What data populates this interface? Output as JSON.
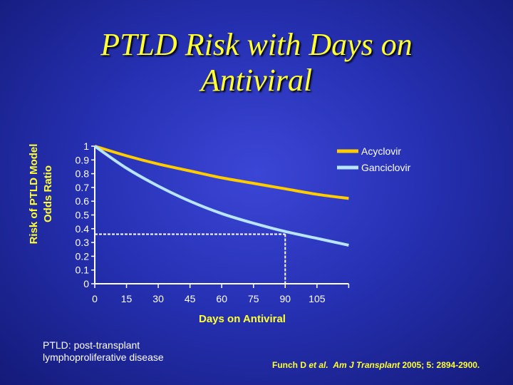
{
  "slide": {
    "title_line1": "PTLD Risk with Days on",
    "title_line2": "Antiviral",
    "footnote_line1": "PTLD: post-transplant",
    "footnote_line2": "lymphoproliferative disease",
    "citation_author": "Funch D ",
    "citation_etal": "et al.",
    "citation_journal": "Am J Transplant",
    "citation_rest": " 2005; 5: 2894-2900."
  },
  "colors": {
    "background": "#2631b4",
    "title": "#ffff33",
    "acyclovir": "#ffcc00",
    "ganciclovir": "#b8e4ff",
    "axis": "#ffffff"
  },
  "chart_data": {
    "type": "line",
    "xlabel": "Days on Antiviral",
    "ylabel_line1": "Risk of PTLD Model",
    "ylabel_line2": "Odds Ratio",
    "xlim": [
      0,
      120
    ],
    "ylim": [
      0,
      1
    ],
    "xticks": [
      0,
      15,
      30,
      45,
      60,
      75,
      90,
      105
    ],
    "yticks": [
      0,
      0.1,
      0.2,
      0.3,
      0.4,
      0.5,
      0.6,
      0.7,
      0.8,
      0.9,
      1
    ],
    "ytick_labels": [
      "0",
      "0.1",
      "0.2",
      "0.3",
      "0.4",
      "0.5",
      "0.6",
      "0.7",
      "0.8",
      "0.9",
      "1"
    ],
    "legend_position": "top-right",
    "series": [
      {
        "name": "Acyclovir",
        "color": "#ffcc00",
        "x": [
          0,
          15,
          30,
          45,
          60,
          75,
          90,
          105,
          120
        ],
        "y": [
          1.0,
          0.93,
          0.87,
          0.82,
          0.77,
          0.73,
          0.69,
          0.65,
          0.62
        ]
      },
      {
        "name": "Ganciclovir",
        "color": "#b8e4ff",
        "x": [
          0,
          15,
          30,
          45,
          60,
          75,
          90,
          105,
          120
        ],
        "y": [
          1.0,
          0.84,
          0.71,
          0.6,
          0.51,
          0.44,
          0.38,
          0.33,
          0.28
        ]
      }
    ],
    "reference": {
      "x": 90,
      "y": 0.36
    }
  }
}
